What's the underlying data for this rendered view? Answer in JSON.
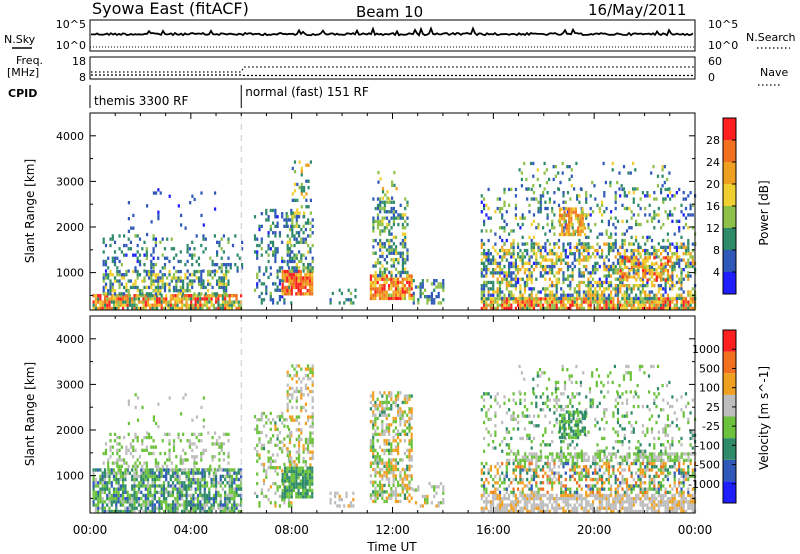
{
  "header": {
    "station": "Syowa East (fitACF)",
    "beam": "Beam 10",
    "date": "16/May/2011"
  },
  "top_panels": {
    "nsky_label": "N.Sky",
    "nsky_ticks": [
      "10^5",
      "10^0"
    ],
    "nsearch_label": "N.Search",
    "nsearch_ticks": [
      "10^5",
      "10^0"
    ],
    "freq_label_1": "Freq.",
    "freq_label_2": "[MHz]",
    "freq_ticks": [
      "18",
      "8"
    ],
    "nave_label": "Nave",
    "nave_ticks": [
      "60",
      "0"
    ],
    "cpid_label": "CPID",
    "cpid_segments": [
      {
        "label": "themis 3300 RF",
        "start_hour": 0
      },
      {
        "label": "normal (fast) 151 RF",
        "start_hour": 6
      }
    ]
  },
  "time_axis": {
    "xlabel": "Time UT",
    "ticks": [
      "00:00",
      "04:00",
      "08:00",
      "12:00",
      "16:00",
      "20:00",
      "00:00"
    ],
    "range_hours": [
      0,
      24
    ]
  },
  "colors": {
    "power": [
      "#1e1eff",
      "#2f58b8",
      "#2f8a6a",
      "#8fc04a",
      "#f0d030",
      "#f0a020",
      "#f07020",
      "#ff1f1f"
    ],
    "velocity": [
      "#1e1eff",
      "#2f58b8",
      "#2f8a6a",
      "#6cc23c",
      "#bdbdbd",
      "#f0a020",
      "#f07020",
      "#ff1f1f"
    ]
  },
  "chart_data": [
    {
      "type": "heatmap",
      "name": "power",
      "ylabel": "Slant Range [km]",
      "yticks": [
        1000,
        2000,
        3000,
        4000
      ],
      "ylim": [
        180,
        4500
      ],
      "xlim": [
        0,
        24
      ],
      "colorbar_label": "Power [dB]",
      "colorbar_ticks": [
        "28",
        "24",
        "20",
        "16",
        "12",
        "8",
        "4"
      ],
      "value_range": [
        0,
        30
      ],
      "blobs": [
        {
          "t": [
            0.1,
            6.0
          ],
          "r": [
            180,
            500
          ],
          "level": [
            8,
            30
          ],
          "density": 0.85
        },
        {
          "t": [
            0.5,
            5.5
          ],
          "r": [
            500,
            1000
          ],
          "level": [
            4,
            18
          ],
          "density": 0.55
        },
        {
          "t": [
            0.5,
            6.0
          ],
          "r": [
            1000,
            1800
          ],
          "level": [
            3,
            12
          ],
          "density": 0.22
        },
        {
          "t": [
            1.5,
            5.0
          ],
          "r": [
            1800,
            2800
          ],
          "level": [
            2,
            8
          ],
          "density": 0.05
        },
        {
          "t": [
            6.5,
            8.0
          ],
          "r": [
            300,
            2400
          ],
          "level": [
            3,
            12
          ],
          "density": 0.25
        },
        {
          "t": [
            7.6,
            8.8
          ],
          "r": [
            500,
            1000
          ],
          "level": [
            18,
            30
          ],
          "density": 0.85
        },
        {
          "t": [
            7.8,
            8.8
          ],
          "r": [
            1000,
            2200
          ],
          "level": [
            4,
            16
          ],
          "density": 0.5
        },
        {
          "t": [
            8.0,
            8.8
          ],
          "r": [
            2200,
            3400
          ],
          "level": [
            4,
            20
          ],
          "density": 0.25
        },
        {
          "t": [
            9.5,
            10.5
          ],
          "r": [
            300,
            600
          ],
          "level": [
            4,
            12
          ],
          "density": 0.35
        },
        {
          "t": [
            11.1,
            12.8
          ],
          "r": [
            400,
            900
          ],
          "level": [
            14,
            30
          ],
          "density": 0.8
        },
        {
          "t": [
            11.2,
            12.6
          ],
          "r": [
            900,
            2600
          ],
          "level": [
            4,
            16
          ],
          "density": 0.45
        },
        {
          "t": [
            11.4,
            12.2
          ],
          "r": [
            2600,
            3200
          ],
          "level": [
            6,
            22
          ],
          "density": 0.25
        },
        {
          "t": [
            12.8,
            14.0
          ],
          "r": [
            300,
            800
          ],
          "level": [
            4,
            14
          ],
          "density": 0.35
        },
        {
          "t": [
            15.5,
            24.0
          ],
          "r": [
            180,
            400
          ],
          "level": [
            10,
            30
          ],
          "density": 0.85
        },
        {
          "t": [
            15.5,
            24.0
          ],
          "r": [
            400,
            1600
          ],
          "level": [
            3,
            22
          ],
          "density": 0.55
        },
        {
          "t": [
            15.5,
            24.0
          ],
          "r": [
            1600,
            2800
          ],
          "level": [
            3,
            16
          ],
          "density": 0.2
        },
        {
          "t": [
            17.0,
            23.0
          ],
          "r": [
            2800,
            3400
          ],
          "level": [
            4,
            16
          ],
          "density": 0.12
        },
        {
          "t": [
            18.6,
            19.6
          ],
          "r": [
            1800,
            2400
          ],
          "level": [
            14,
            26
          ],
          "density": 0.65
        },
        {
          "t": [
            21.0,
            23.0
          ],
          "r": [
            800,
            1300
          ],
          "level": [
            14,
            28
          ],
          "density": 0.55
        }
      ]
    },
    {
      "type": "heatmap",
      "name": "velocity",
      "ylabel": "Slant Range [km]",
      "yticks": [
        1000,
        2000,
        3000,
        4000
      ],
      "ylim": [
        180,
        4500
      ],
      "xlim": [
        0,
        24
      ],
      "colorbar_label": "Velocity [m s^-1]",
      "colorbar_ticks": [
        "1000",
        "500",
        "100",
        "25",
        "-25",
        "-100",
        "-500",
        "-1000"
      ],
      "value_range": [
        -1000,
        1000
      ],
      "blobs": [
        {
          "t": [
            0.1,
            6.0
          ],
          "r": [
            180,
            1100
          ],
          "level": [
            -600,
            100
          ],
          "density": 0.75
        },
        {
          "t": [
            0.5,
            5.5
          ],
          "r": [
            1100,
            1900
          ],
          "level": [
            -200,
            200
          ],
          "density": 0.3
        },
        {
          "t": [
            1.5,
            5.0
          ],
          "r": [
            1900,
            2800
          ],
          "level": [
            -100,
            150
          ],
          "density": 0.05
        },
        {
          "t": [
            6.5,
            8.0
          ],
          "r": [
            300,
            2400
          ],
          "level": [
            -300,
            300
          ],
          "density": 0.25
        },
        {
          "t": [
            7.6,
            8.8
          ],
          "r": [
            500,
            1200
          ],
          "level": [
            -500,
            -100
          ],
          "density": 0.85
        },
        {
          "t": [
            7.8,
            8.8
          ],
          "r": [
            1200,
            3400
          ],
          "level": [
            -200,
            400
          ],
          "density": 0.35
        },
        {
          "t": [
            9.5,
            10.5
          ],
          "r": [
            300,
            600
          ],
          "level": [
            0,
            300
          ],
          "density": 0.3
        },
        {
          "t": [
            11.1,
            12.8
          ],
          "r": [
            400,
            2800
          ],
          "level": [
            -300,
            500
          ],
          "density": 0.55
        },
        {
          "t": [
            12.8,
            14.0
          ],
          "r": [
            300,
            800
          ],
          "level": [
            -100,
            300
          ],
          "density": 0.3
        },
        {
          "t": [
            15.5,
            24.0
          ],
          "r": [
            180,
            600
          ],
          "level": [
            50,
            300
          ],
          "density": 0.75
        },
        {
          "t": [
            15.5,
            24.0
          ],
          "r": [
            600,
            1300
          ],
          "level": [
            -600,
            700
          ],
          "density": 0.5
        },
        {
          "t": [
            16.5,
            24.0
          ],
          "r": [
            1300,
            1500
          ],
          "level": [
            -25,
            25
          ],
          "density": 0.7
        },
        {
          "t": [
            15.5,
            24.0
          ],
          "r": [
            1500,
            2800
          ],
          "level": [
            -400,
            200
          ],
          "density": 0.2
        },
        {
          "t": [
            17.0,
            23.0
          ],
          "r": [
            2800,
            3400
          ],
          "level": [
            -300,
            100
          ],
          "density": 0.12
        },
        {
          "t": [
            18.6,
            19.6
          ],
          "r": [
            1800,
            2400
          ],
          "level": [
            -500,
            -100
          ],
          "density": 0.6
        }
      ]
    }
  ]
}
